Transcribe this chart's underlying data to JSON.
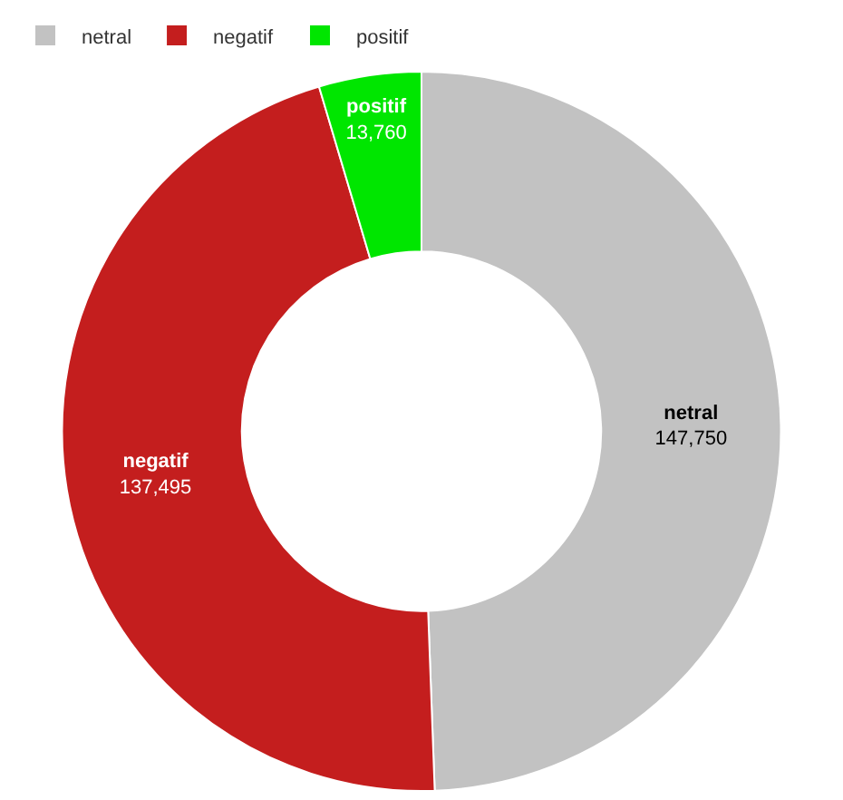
{
  "chart_data": {
    "type": "donut",
    "categories": [
      "netral",
      "negatif",
      "positif"
    ],
    "values": [
      147750,
      137495,
      13760
    ],
    "colors": [
      "#c2c2c2",
      "#c41e1e",
      "#00e600"
    ],
    "value_labels": [
      "147,750",
      "137,495",
      "13,760"
    ],
    "legend": "top left"
  }
}
